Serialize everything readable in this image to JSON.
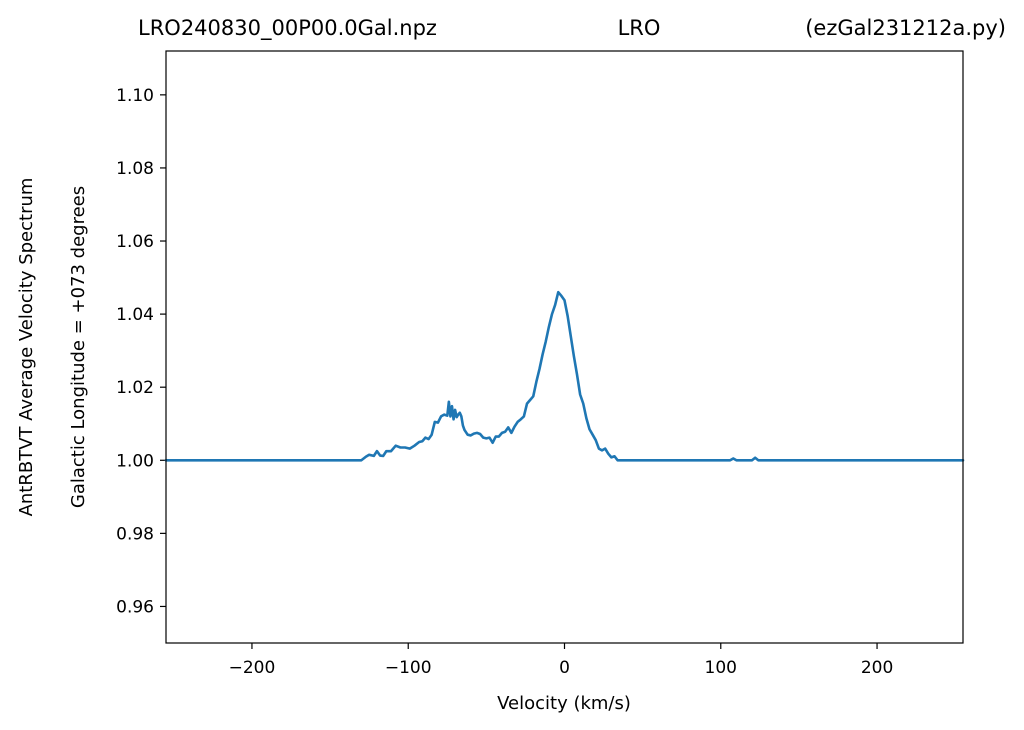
{
  "chart_data": {
    "type": "line",
    "title": {
      "left": "LRO240830_00P00.0Gal.npz",
      "center": "LRO",
      "right": "(ezGal231212a.py)"
    },
    "xlabel": "Velocity (km/s)",
    "ylabel_outer": "AntRBTVT Average Velocity Spectrum",
    "ylabel_inner": "Galactic Longitude = +073 degrees",
    "xlim": [
      -255,
      255
    ],
    "ylim": [
      0.95,
      1.112
    ],
    "xticks": [
      -200,
      -100,
      0,
      100,
      200
    ],
    "xtick_labels": [
      "−200",
      "−100",
      "0",
      "100",
      "200"
    ],
    "yticks": [
      0.96,
      0.98,
      1.0,
      1.02,
      1.04,
      1.06,
      1.08,
      1.1
    ],
    "ytick_labels": [
      "0.96",
      "0.98",
      "1.00",
      "1.02",
      "1.04",
      "1.06",
      "1.08",
      "1.10"
    ],
    "grid": false,
    "line_color": "#1f77b4",
    "series": [
      {
        "x": [
          -255,
          -130,
          -127,
          -125,
          -122,
          -120,
          -118,
          -116,
          -114,
          -111,
          -108,
          -105,
          -102,
          -99,
          -96,
          -93,
          -91,
          -89,
          -87,
          -85,
          -83,
          -81,
          -79,
          -77,
          -75,
          -74,
          -73,
          -72,
          -71,
          -70,
          -69,
          -68,
          -67,
          -66,
          -65,
          -64,
          -62,
          -60,
          -58,
          -56,
          -54,
          -52,
          -50,
          -48,
          -46,
          -44,
          -42,
          -40,
          -38,
          -36,
          -34,
          -32,
          -30,
          -28,
          -26,
          -24,
          -22,
          -20,
          -18,
          -16,
          -14,
          -12,
          -10,
          -8,
          -6,
          -4,
          -2,
          0,
          2,
          4,
          6,
          8,
          10,
          12,
          14,
          16,
          18,
          20,
          22,
          24,
          26,
          28,
          30,
          32,
          34,
          36,
          38,
          40,
          42,
          44,
          106,
          108,
          110,
          120,
          122,
          124,
          255
        ],
        "y": [
          1.0,
          1.0,
          1.001,
          1.0015,
          1.0012,
          1.0025,
          1.0013,
          1.0012,
          1.0025,
          1.0025,
          1.004,
          1.0035,
          1.0035,
          1.0032,
          1.004,
          1.005,
          1.0052,
          1.0062,
          1.0058,
          1.007,
          1.0105,
          1.0103,
          1.012,
          1.0125,
          1.0122,
          1.016,
          1.012,
          1.0148,
          1.0112,
          1.0138,
          1.0118,
          1.0125,
          1.013,
          1.012,
          1.0095,
          1.0083,
          1.007,
          1.0068,
          1.0073,
          1.0075,
          1.0072,
          1.0062,
          1.006,
          1.0062,
          1.0048,
          1.0065,
          1.0065,
          1.0075,
          1.0078,
          1.009,
          1.0075,
          1.0092,
          1.0105,
          1.0112,
          1.012,
          1.0155,
          1.0165,
          1.0175,
          1.0215,
          1.025,
          1.029,
          1.0325,
          1.0365,
          1.04,
          1.0425,
          1.046,
          1.045,
          1.0438,
          1.0395,
          1.034,
          1.0285,
          1.0235,
          1.018,
          1.0155,
          1.0115,
          1.0085,
          1.007,
          1.0055,
          1.0032,
          1.0027,
          1.0032,
          1.0018,
          1.0008,
          1.0011,
          1.0,
          1.0,
          1.0,
          1.0,
          1.0,
          1.0,
          1.0,
          1.0005,
          1.0,
          1.0,
          1.0007,
          1.0,
          1.0
        ]
      }
    ]
  }
}
